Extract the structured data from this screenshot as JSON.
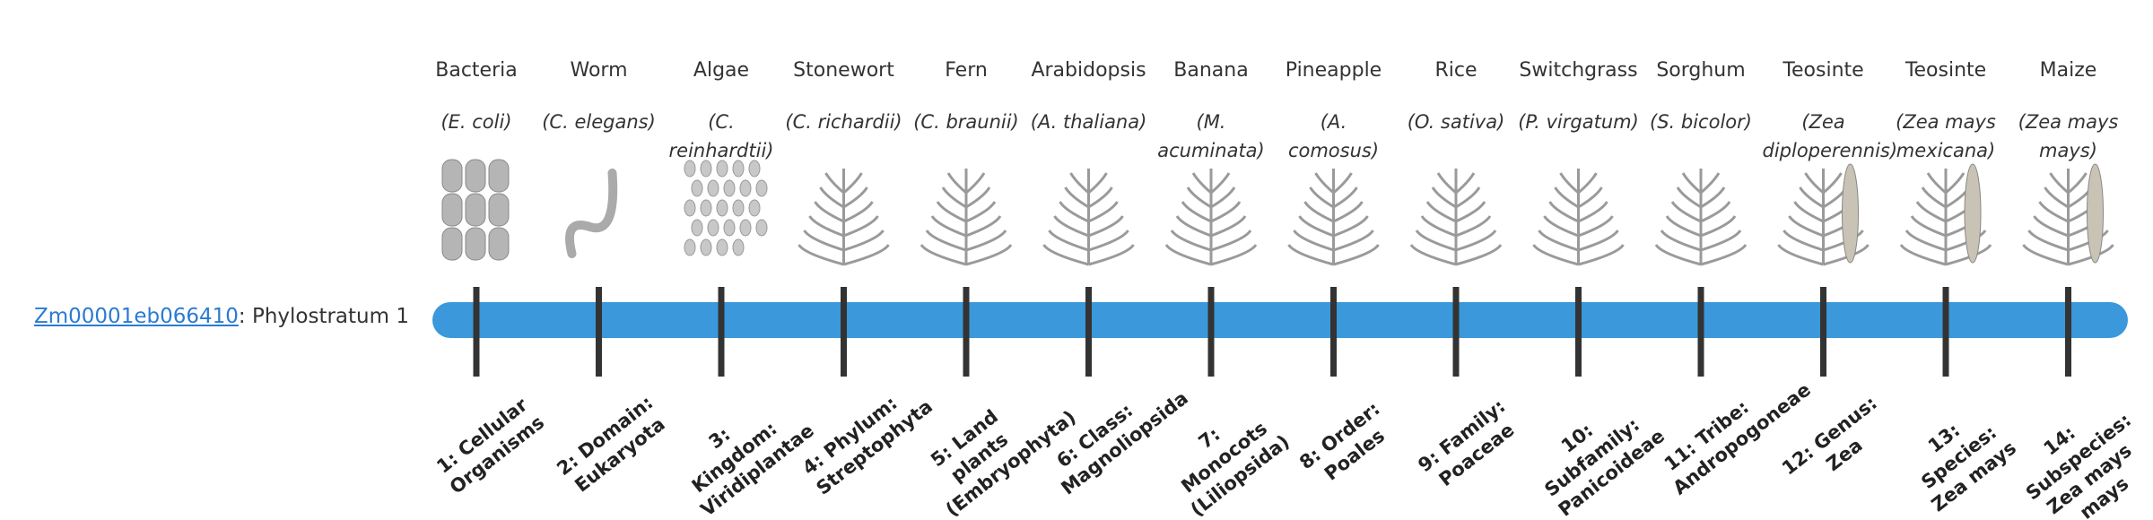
{
  "gene": "Zm00001eb066410",
  "gene_suffix": ": Phylostratum 1",
  "strata": [
    {
      "name": "Bacteria",
      "species": "(E. coli)",
      "label": "1: Cellular Organisms"
    },
    {
      "name": "Worm",
      "species": "(C. elegans)",
      "label": "2: Domain: Eukaryota"
    },
    {
      "name": "Algae",
      "species": "(C. reinhardtii)",
      "label": "3: Kingdom: Viridiplantae"
    },
    {
      "name": "Stonewort",
      "species": "(C. richardii)",
      "label": "4: Phylum: Streptophyta"
    },
    {
      "name": "Fern",
      "species": "(C. braunii)",
      "label": "5: Land plants (Embryophyta)"
    },
    {
      "name": "Arabidopsis",
      "species": "(A. thaliana)",
      "label": "6: Class: Magnoliopsida"
    },
    {
      "name": "Banana",
      "species": "(M. acuminata)",
      "label": "7: Monocots (Liliopsida)"
    },
    {
      "name": "Pineapple",
      "species": "(A. comosus)",
      "label": "8: Order: Poales"
    },
    {
      "name": "Rice",
      "species": "(O. sativa)",
      "label": "9: Family: Poaceae"
    },
    {
      "name": "Switchgrass",
      "species": "(P. virgatum)",
      "label": "10: Subfamily: Panicoideae"
    },
    {
      "name": "Sorghum",
      "species": "(S. bicolor)",
      "label": "11: Tribe: Andropogoneae"
    },
    {
      "name": "Teosinte",
      "species": "(Zea diploperennis)",
      "label": "12: Genus: Zea"
    },
    {
      "name": "Teosinte",
      "species": "(Zea mays mexicana)",
      "label": "13: Species: Zea mays"
    },
    {
      "name": "Maize",
      "species": "(Zea mays mays)",
      "label": "14: Subspecies: Zea mays mays"
    }
  ]
}
